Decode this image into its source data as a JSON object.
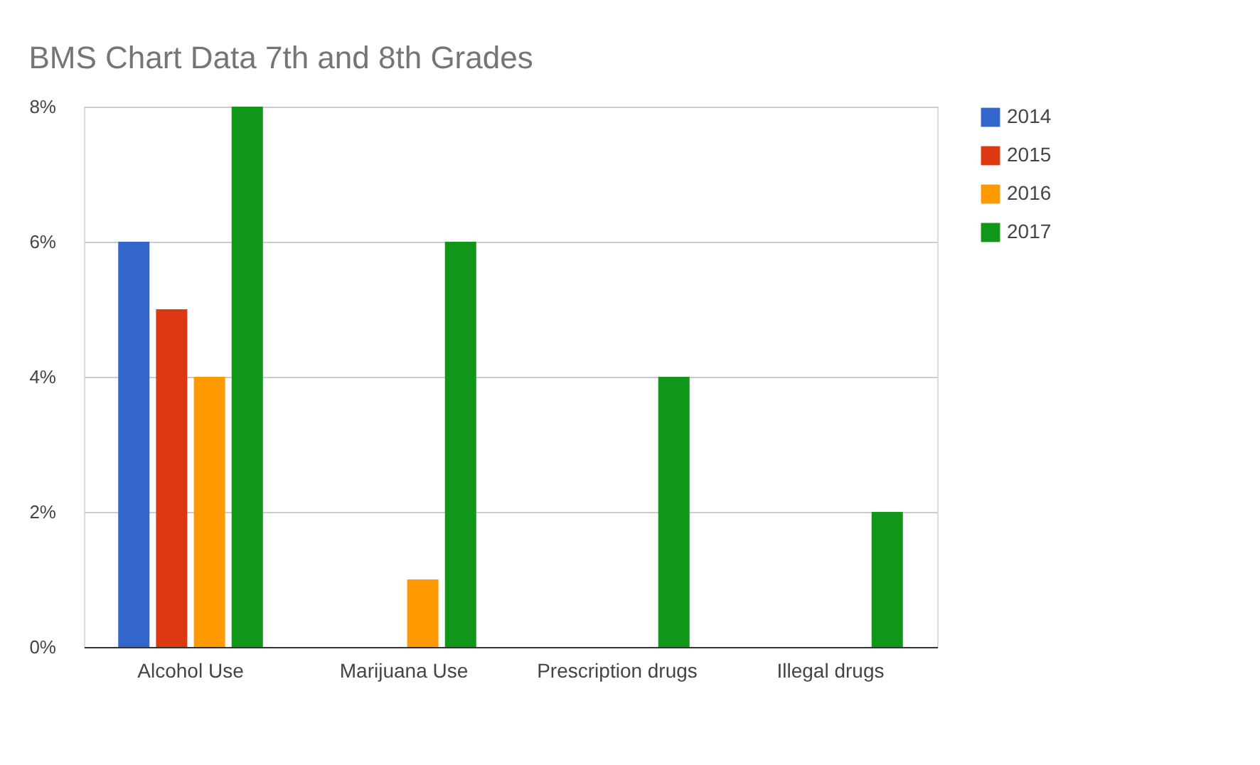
{
  "chart_data": {
    "type": "bar",
    "title": "BMS Chart Data 7th and 8th Grades",
    "categories": [
      "Alcohol Use",
      "Marijuana Use",
      "Prescription drugs",
      "Illegal drugs"
    ],
    "series": [
      {
        "name": "2014",
        "color": "#3366cc",
        "values": [
          6,
          null,
          null,
          null
        ]
      },
      {
        "name": "2015",
        "color": "#dc3912",
        "values": [
          5,
          null,
          null,
          null
        ]
      },
      {
        "name": "2016",
        "color": "#ff9900",
        "values": [
          4,
          1,
          null,
          null
        ]
      },
      {
        "name": "2017",
        "color": "#109618",
        "values": [
          8,
          6,
          4,
          2
        ]
      }
    ],
    "ylim": [
      0,
      8
    ],
    "yticks": [
      {
        "value": 0,
        "label": "0%"
      },
      {
        "value": 2,
        "label": "2%"
      },
      {
        "value": 4,
        "label": "4%"
      },
      {
        "value": 6,
        "label": "6%"
      },
      {
        "value": 8,
        "label": "8%"
      }
    ],
    "grid": "y",
    "legend": "top right"
  }
}
